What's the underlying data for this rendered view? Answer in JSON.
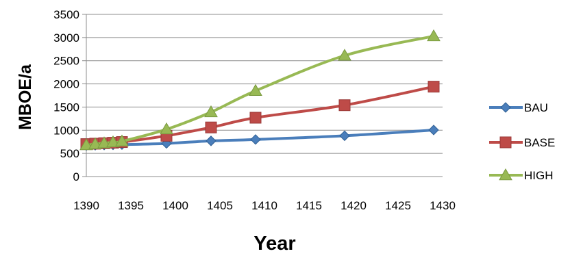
{
  "chart_data": {
    "type": "line",
    "title": "",
    "xlabel": "Year",
    "ylabel": "MBOE/a",
    "xlim": [
      1390,
      1430
    ],
    "ylim": [
      0,
      3500
    ],
    "x_ticks": [
      1390,
      1395,
      1400,
      1405,
      1410,
      1415,
      1420,
      1425,
      1430
    ],
    "y_ticks": [
      0,
      500,
      1000,
      1500,
      2000,
      2500,
      3000,
      3500
    ],
    "grid": "horizontal",
    "legend": "right",
    "series": [
      {
        "name": "BAU",
        "color": "#4a7ebb",
        "marker": "diamond",
        "x": [
          1390,
          1391,
          1392,
          1393,
          1394,
          1399,
          1404,
          1409,
          1419,
          1429
        ],
        "y": [
          670,
          675,
          680,
          685,
          690,
          715,
          770,
          800,
          880,
          1005
        ]
      },
      {
        "name": "BASE",
        "color": "#be4b48",
        "marker": "square",
        "x": [
          1390,
          1391,
          1392,
          1393,
          1394,
          1399,
          1404,
          1409,
          1419,
          1429
        ],
        "y": [
          700,
          710,
          720,
          730,
          745,
          880,
          1060,
          1270,
          1540,
          1940
        ]
      },
      {
        "name": "HIGH",
        "color": "#98b954",
        "marker": "triangle",
        "x": [
          1390,
          1391,
          1392,
          1393,
          1394,
          1399,
          1404,
          1409,
          1419,
          1429
        ],
        "y": [
          680,
          700,
          720,
          740,
          760,
          1020,
          1390,
          1850,
          2610,
          3030
        ]
      }
    ]
  }
}
